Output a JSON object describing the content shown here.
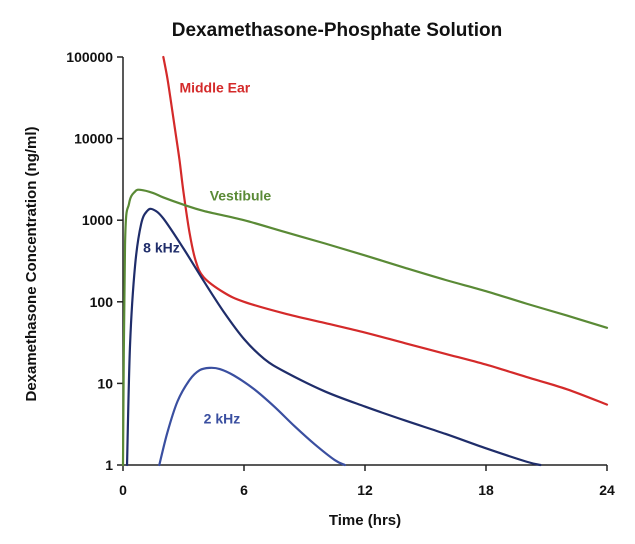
{
  "chart_data": {
    "type": "line",
    "title": "Dexamethasone-Phosphate Solution",
    "xlabel": "Time (hrs)",
    "ylabel": "Dexamethasone Concentration (ng/ml)",
    "xlim": [
      0,
      24
    ],
    "ylim": [
      1,
      100000
    ],
    "yscale": "log",
    "grid": false,
    "legend": "inline labels",
    "x_ticks": [
      0,
      6,
      12,
      18,
      24
    ],
    "x_tick_labels": [
      "0",
      "6",
      "12",
      "18",
      "24"
    ],
    "y_ticks": [
      1,
      10,
      100,
      1000,
      10000,
      100000
    ],
    "y_tick_labels": [
      "1",
      "10",
      "100",
      "1000",
      "10000",
      "100000"
    ],
    "series": [
      {
        "name": "Middle Ear",
        "color": "#d42a2a",
        "label_at": [
          2.8,
          42000
        ],
        "points": [
          [
            2.0,
            100000
          ],
          [
            2.2,
            55000
          ],
          [
            2.4,
            26000
          ],
          [
            2.6,
            12000
          ],
          [
            2.8,
            5500
          ],
          [
            3.0,
            2200
          ],
          [
            3.3,
            700
          ],
          [
            3.6,
            320
          ],
          [
            4.0,
            200
          ],
          [
            5.0,
            130
          ],
          [
            6.0,
            100
          ],
          [
            8.0,
            72
          ],
          [
            10.0,
            55
          ],
          [
            12.0,
            42
          ],
          [
            14.0,
            31
          ],
          [
            16.0,
            23
          ],
          [
            18.0,
            17
          ],
          [
            20.0,
            12
          ],
          [
            22.0,
            8.5
          ],
          [
            24.0,
            5.5
          ]
        ]
      },
      {
        "name": "Vestibule",
        "color": "#5a8a36",
        "label_at": [
          4.3,
          2000
        ],
        "points": [
          [
            0.0,
            1
          ],
          [
            0.1,
            500
          ],
          [
            0.3,
            1600
          ],
          [
            0.6,
            2250
          ],
          [
            0.9,
            2350
          ],
          [
            1.5,
            2150
          ],
          [
            2.0,
            1900
          ],
          [
            3.0,
            1550
          ],
          [
            4.0,
            1300
          ],
          [
            6.0,
            1000
          ],
          [
            8.0,
            720
          ],
          [
            10.0,
            520
          ],
          [
            12.0,
            370
          ],
          [
            14.0,
            260
          ],
          [
            16.0,
            185
          ],
          [
            18.0,
            135
          ],
          [
            20.0,
            95
          ],
          [
            22.0,
            68
          ],
          [
            24.0,
            48
          ]
        ]
      },
      {
        "name": "8 kHz",
        "color": "#1f2d6a",
        "label_at": [
          1.0,
          460
        ],
        "points": [
          [
            0.2,
            1
          ],
          [
            0.35,
            30
          ],
          [
            0.6,
            280
          ],
          [
            0.9,
            900
          ],
          [
            1.2,
            1300
          ],
          [
            1.5,
            1350
          ],
          [
            2.0,
            1050
          ],
          [
            3.0,
            450
          ],
          [
            4.0,
            180
          ],
          [
            5.0,
            75
          ],
          [
            6.0,
            35
          ],
          [
            7.0,
            20
          ],
          [
            8.0,
            14
          ],
          [
            10.0,
            8
          ],
          [
            12.0,
            5.2
          ],
          [
            14.0,
            3.5
          ],
          [
            16.0,
            2.4
          ],
          [
            18.0,
            1.6
          ],
          [
            20.0,
            1.1
          ],
          [
            20.7,
            1
          ]
        ]
      },
      {
        "name": "2 kHz",
        "color": "#3a4fa0",
        "label_at": [
          4.0,
          3.7
        ],
        "points": [
          [
            1.8,
            1
          ],
          [
            2.2,
            2.5
          ],
          [
            2.7,
            6
          ],
          [
            3.3,
            11
          ],
          [
            3.8,
            14.5
          ],
          [
            4.3,
            15.5
          ],
          [
            4.8,
            15
          ],
          [
            5.5,
            12.5
          ],
          [
            6.5,
            8.5
          ],
          [
            7.5,
            5.2
          ],
          [
            8.5,
            3
          ],
          [
            9.5,
            1.8
          ],
          [
            10.5,
            1.15
          ],
          [
            11.0,
            1
          ]
        ]
      }
    ]
  }
}
